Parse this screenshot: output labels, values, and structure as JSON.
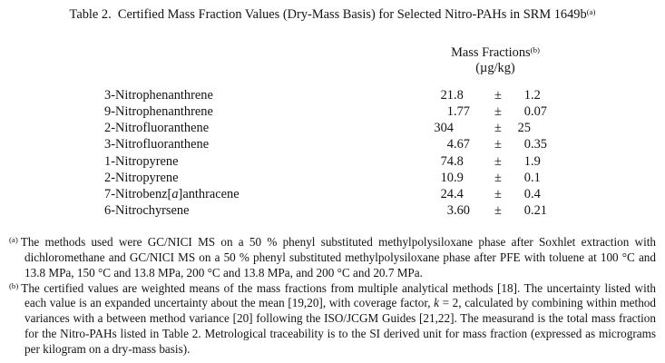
{
  "title": {
    "text": "Table 2.  Certified Mass Fraction Values (Dry-Mass Basis) for Selected Nitro-PAHs in SRM 1649b",
    "superscript": "(a)"
  },
  "table": {
    "header": {
      "line1": "Mass Fractions",
      "superscript": "(b)",
      "line2": "(µg/kg)"
    },
    "plus_minus": "±",
    "rows": [
      {
        "name": "3-Nitrophenanthrene",
        "value": "21.8",
        "uncertainty": "1.2"
      },
      {
        "name": "9-Nitrophenanthrene",
        "value": "1.77",
        "uncertainty": "0.07"
      },
      {
        "name": "2-Nitrofluoranthene",
        "value": "304",
        "uncertainty": "25"
      },
      {
        "name": "3-Nitrofluoranthene",
        "value": "4.67",
        "uncertainty": "0.35"
      },
      {
        "name": "1-Nitropyrene",
        "value": "74.8",
        "uncertainty": "1.9"
      },
      {
        "name": "2-Nitropyrene",
        "value": "10.9",
        "uncertainty": "0.1"
      },
      {
        "name": "7-Nitrobenz[*a*]anthracene",
        "value": "24.4",
        "uncertainty": "0.4"
      },
      {
        "name": "6-Nitrochyrsene",
        "value": "3.60",
        "uncertainty": "0.21"
      }
    ]
  },
  "footnotes": [
    {
      "marker": "(a)",
      "text": "The methods used were GC/NICI MS on a 50 % phenyl substituted methylpolysiloxane phase after Soxhlet extraction with dichloromethane and GC/NICI MS on a 50 % phenyl substituted methylpolysiloxane phase after PFE with toluene at 100 °C and 13.8 MPa, 150 °C and 13.8 MPa, 200 °C and 13.8 MPa, and 200 °C and 20.7 MPa."
    },
    {
      "marker": "(b)",
      "text": "The certified values are weighted means of the mass fractions from multiple analytical methods [18].  The uncertainty listed with each value is an expanded uncertainty about the mean [19,20], with coverage factor, *k* = 2, calculated by combining within method variances with a between method variance [20] following the ISO/JCGM Guides [21,22].  The measurand is the total mass fraction for the Nitro-PAHs listed in Table 2.  Metrological traceability is to the SI derived unit for mass fraction (expressed as micrograms per kilogram on a dry-mass basis)."
    }
  ],
  "colors": {
    "text": "#131313",
    "background": "#ffffff"
  }
}
